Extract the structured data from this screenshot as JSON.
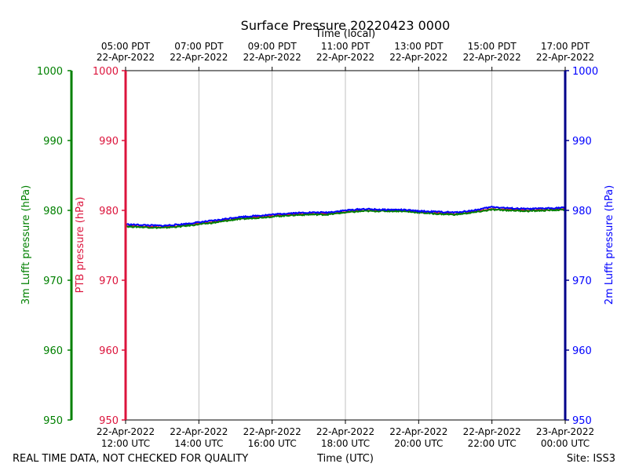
{
  "chart_data": {
    "type": "line",
    "title": "Surface Pressure 20220423 0000",
    "top_xlabel": "Time (local)",
    "xlabel": "Time (UTC)",
    "left_outer_ylabel": "3m Lufft pressure (hPa)",
    "left_inner_ylabel": "PTB pressure (hPa)",
    "right_ylabel": "2m Lufft pressure (hPa)",
    "ylim": [
      950,
      1000
    ],
    "yticks": [
      950,
      960,
      970,
      980,
      990,
      1000
    ],
    "xlim_hours": [
      12,
      24
    ],
    "bottom_ticks": [
      {
        "h": 12,
        "date": "22-Apr-2022",
        "time": "12:00 UTC"
      },
      {
        "h": 14,
        "date": "22-Apr-2022",
        "time": "14:00 UTC"
      },
      {
        "h": 16,
        "date": "22-Apr-2022",
        "time": "16:00 UTC"
      },
      {
        "h": 18,
        "date": "22-Apr-2022",
        "time": "18:00 UTC"
      },
      {
        "h": 20,
        "date": "22-Apr-2022",
        "time": "20:00 UTC"
      },
      {
        "h": 22,
        "date": "22-Apr-2022",
        "time": "22:00 UTC"
      },
      {
        "h": 24,
        "date": "23-Apr-2022",
        "time": "00:00 UTC"
      }
    ],
    "top_ticks": [
      {
        "h": 12,
        "time": "05:00 PDT",
        "date": "22-Apr-2022"
      },
      {
        "h": 14,
        "time": "07:00 PDT",
        "date": "22-Apr-2022"
      },
      {
        "h": 16,
        "time": "09:00 PDT",
        "date": "22-Apr-2022"
      },
      {
        "h": 18,
        "time": "11:00 PDT",
        "date": "22-Apr-2022"
      },
      {
        "h": 20,
        "time": "13:00 PDT",
        "date": "22-Apr-2022"
      },
      {
        "h": 22,
        "time": "15:00 PDT",
        "date": "22-Apr-2022"
      },
      {
        "h": 24,
        "time": "17:00 PDT",
        "date": "22-Apr-2022"
      }
    ],
    "x_hours": [
      12.0,
      12.5,
      13.0,
      13.5,
      14.0,
      14.5,
      15.0,
      15.5,
      16.0,
      16.5,
      17.0,
      17.5,
      18.0,
      18.5,
      19.0,
      19.5,
      20.0,
      20.5,
      21.0,
      21.5,
      22.0,
      22.5,
      23.0,
      23.5,
      24.0
    ],
    "series": [
      {
        "color": "#dc143c",
        "values": [
          977.8,
          977.7,
          977.6,
          977.8,
          978.1,
          978.4,
          978.8,
          979.0,
          979.2,
          979.4,
          979.5,
          979.5,
          979.8,
          980.0,
          980.0,
          980.0,
          979.8,
          979.6,
          979.5,
          979.8,
          980.2,
          980.1,
          980.0,
          980.1,
          980.2
        ]
      },
      {
        "color": "#008000",
        "values": [
          977.7,
          977.6,
          977.5,
          977.7,
          978.0,
          978.3,
          978.7,
          978.9,
          979.1,
          979.3,
          979.4,
          979.4,
          979.7,
          979.9,
          979.9,
          979.9,
          979.7,
          979.5,
          979.4,
          979.7,
          980.1,
          980.0,
          979.9,
          980.0,
          980.1
        ]
      },
      {
        "color": "#0000ff",
        "values": [
          978.0,
          977.9,
          977.8,
          978.0,
          978.3,
          978.6,
          979.0,
          979.2,
          979.4,
          979.6,
          979.7,
          979.7,
          980.0,
          980.2,
          980.1,
          980.1,
          979.9,
          979.8,
          979.7,
          980.0,
          980.5,
          980.3,
          980.2,
          980.3,
          980.4
        ]
      }
    ],
    "grid": "vertical",
    "colors": {
      "left_outer": "#008000",
      "left_inner": "#dc143c",
      "right": "#0000ff",
      "right_axis": "#00008b"
    }
  },
  "footer": {
    "quality_note": "REAL TIME DATA, NOT CHECKED FOR QUALITY",
    "site": "Site: ISS3"
  }
}
